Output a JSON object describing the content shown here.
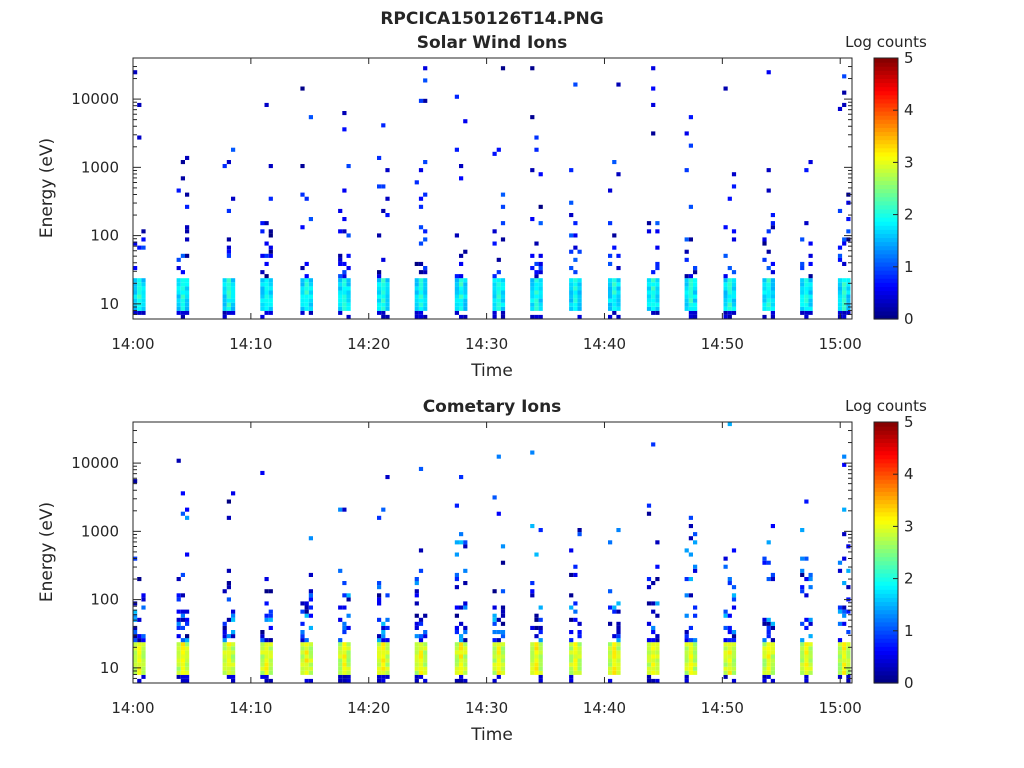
{
  "figure": {
    "filename_title": "RPCICA150126T14.PNG"
  },
  "chart_data": [
    {
      "type": "heatmap",
      "title": "Solar Wind Ions",
      "xlabel": "Time",
      "ylabel": "Energy (eV)",
      "x_ticks": [
        "14:00",
        "14:10",
        "14:20",
        "14:30",
        "14:40",
        "14:50",
        "15:00"
      ],
      "xlim_minutes": [
        0,
        61
      ],
      "y_ticks": [
        10,
        100,
        1000,
        10000
      ],
      "y_tick_labels": [
        "10",
        "100",
        "1000",
        "10000"
      ],
      "ylim_eV": [
        6,
        40000
      ],
      "y_scale": "log",
      "colorbar": {
        "label": "Log counts",
        "range": [
          0,
          5
        ],
        "ticks": [
          "0",
          "1",
          "2",
          "3",
          "4",
          "5"
        ],
        "colormap": "jet"
      },
      "sweep_start_minutes": [
        0,
        3.7,
        7.6,
        10.8,
        14.2,
        17.4,
        20.7,
        23.9,
        27.3,
        30.5,
        33.7,
        37.0,
        40.3,
        43.6,
        46.8,
        50.1,
        53.4,
        56.6,
        59.8
      ],
      "peak_band_eV": [
        8,
        25
      ],
      "peak_log_counts": 2.2
    },
    {
      "type": "heatmap",
      "title": "Cometary Ions",
      "xlabel": "Time",
      "ylabel": "Energy (eV)",
      "x_ticks": [
        "14:00",
        "14:10",
        "14:20",
        "14:30",
        "14:40",
        "14:50",
        "15:00"
      ],
      "xlim_minutes": [
        0,
        61
      ],
      "y_ticks": [
        10,
        100,
        1000,
        10000
      ],
      "y_tick_labels": [
        "10",
        "100",
        "1000",
        "10000"
      ],
      "ylim_eV": [
        6,
        40000
      ],
      "y_scale": "log",
      "colorbar": {
        "label": "Log counts",
        "range": [
          0,
          5
        ],
        "ticks": [
          "0",
          "1",
          "2",
          "3",
          "4",
          "5"
        ],
        "colormap": "jet"
      },
      "sweep_start_minutes": [
        0,
        3.7,
        7.6,
        10.8,
        14.2,
        17.4,
        20.7,
        23.9,
        27.3,
        30.5,
        33.7,
        37.0,
        40.3,
        43.6,
        46.8,
        50.1,
        53.4,
        56.6,
        59.8
      ],
      "peak_band_eV": [
        8,
        25
      ],
      "peak_log_counts": 3.3
    }
  ]
}
